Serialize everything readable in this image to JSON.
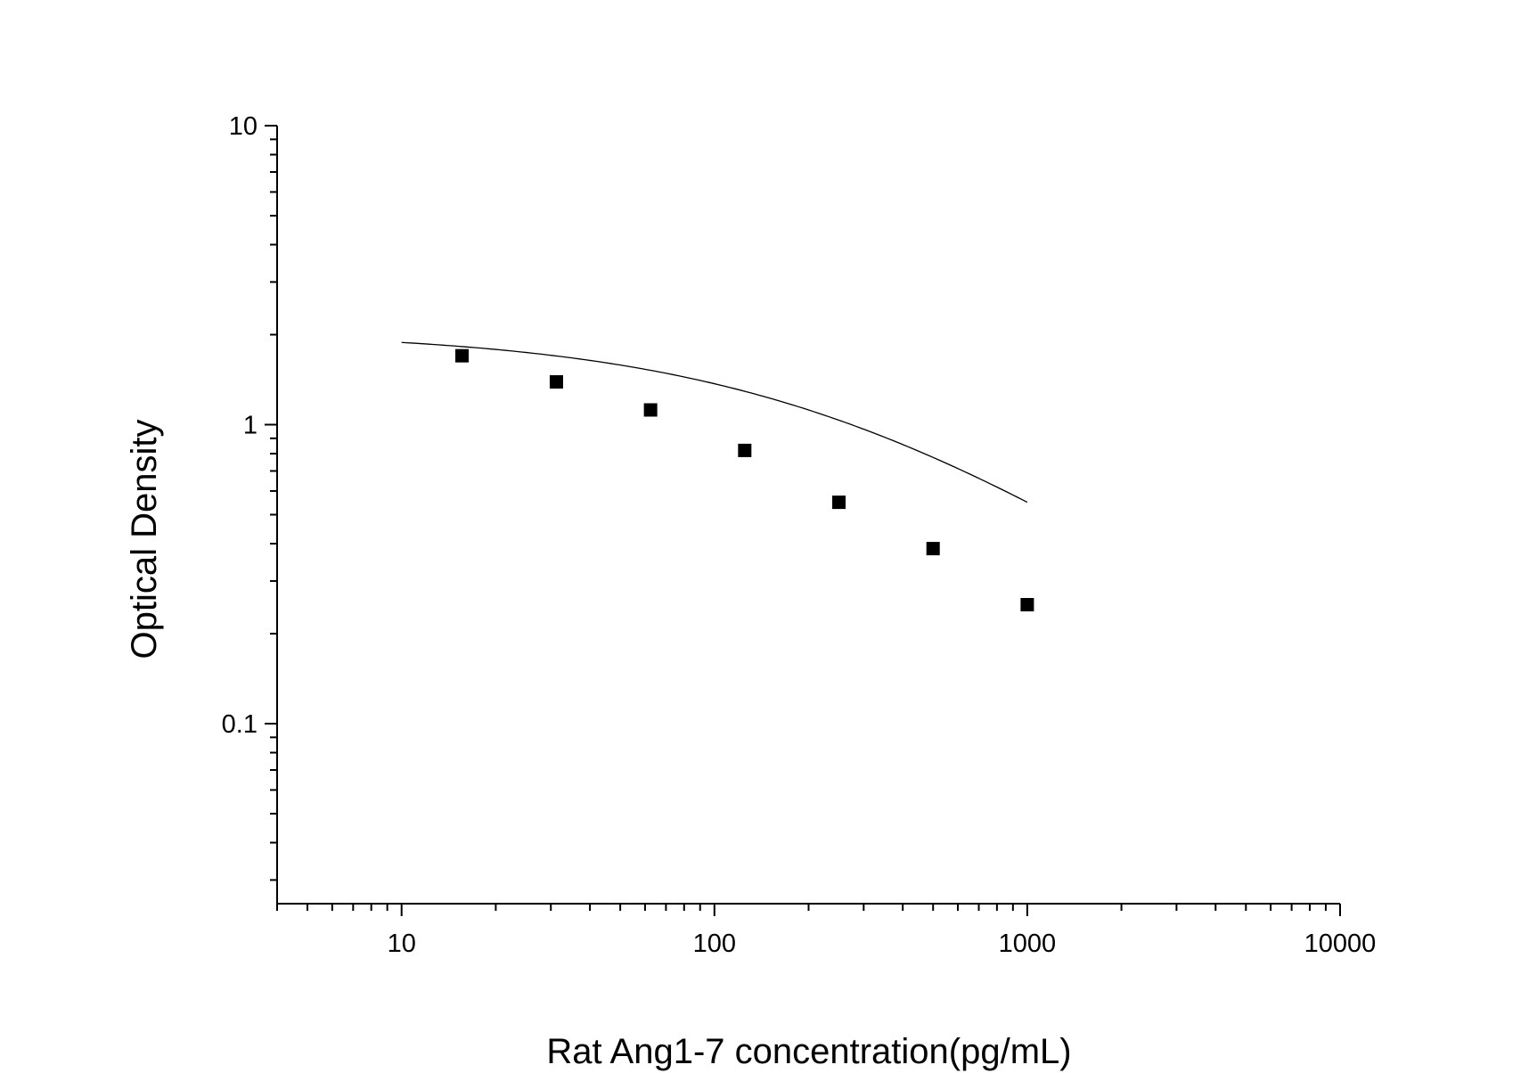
{
  "chart_data": {
    "type": "scatter",
    "title": "",
    "xlabel": "Rat Ang1-7 concentration(pg/mL)",
    "ylabel": "Optical Density",
    "x_scale": "log",
    "y_scale": "log",
    "xlim": [
      4,
      10000
    ],
    "ylim": [
      0.025,
      10
    ],
    "x_ticks": [
      {
        "value": 10,
        "label": "10"
      },
      {
        "value": 100,
        "label": "100"
      },
      {
        "value": 1000,
        "label": "1000"
      },
      {
        "value": 10000,
        "label": "10000"
      }
    ],
    "y_ticks": [
      {
        "value": 0.1,
        "label": "0.1"
      },
      {
        "value": 1,
        "label": "1"
      },
      {
        "value": 10,
        "label": "10"
      }
    ],
    "grid": false,
    "legend": "none",
    "series": [
      {
        "points": [
          {
            "x": 15.6,
            "y": 1.7
          },
          {
            "x": 31.25,
            "y": 1.39
          },
          {
            "x": 62.5,
            "y": 1.12
          },
          {
            "x": 125,
            "y": 0.82
          },
          {
            "x": 250,
            "y": 0.55
          },
          {
            "x": 500,
            "y": 0.385
          },
          {
            "x": 1000,
            "y": 0.25
          }
        ],
        "marker": "square",
        "color": "#000000"
      }
    ],
    "fit_curve": {
      "x_range": [
        10,
        1000
      ],
      "A": 2.05,
      "D": 0.02,
      "C": 250,
      "B": 0.75,
      "color": "#000000"
    }
  }
}
